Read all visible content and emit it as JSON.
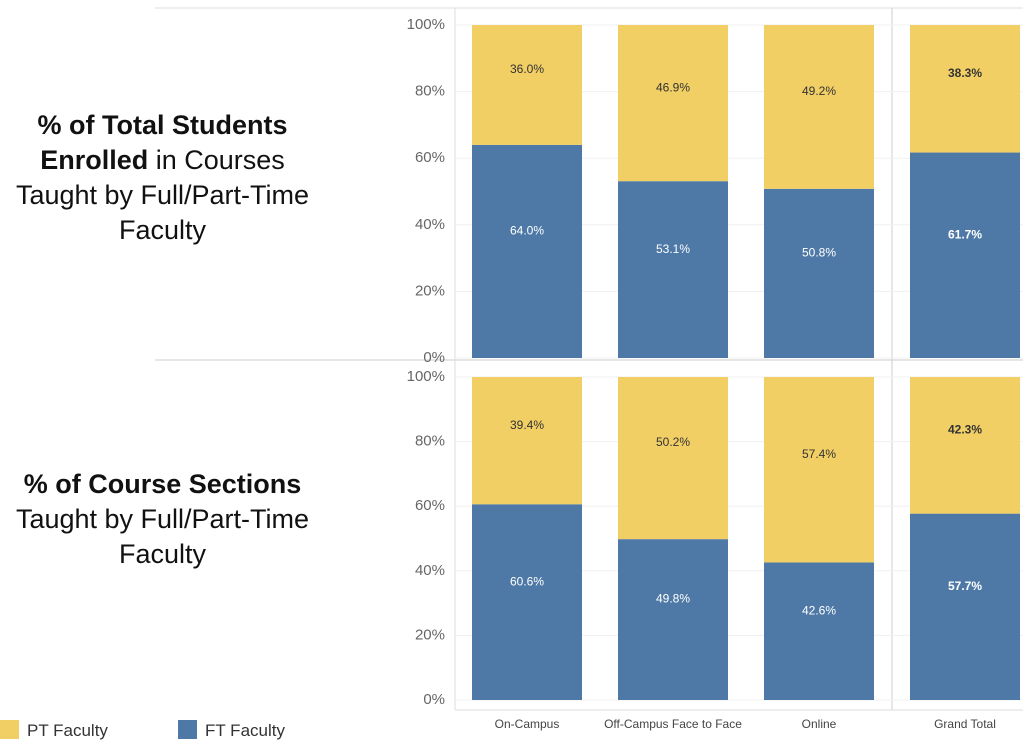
{
  "chart_data": [
    {
      "type": "stacked_bar",
      "title_bold": "% of Total Students Enrolled",
      "title": "in Courses Taught by Full/Part-Time Faculty",
      "ylim": [
        0,
        100
      ],
      "yticks": [
        {
          "value": 0,
          "label": "0%"
        },
        {
          "value": 20,
          "label": "20%"
        },
        {
          "value": 40,
          "label": "40%"
        },
        {
          "value": 60,
          "label": "60%"
        },
        {
          "value": 80,
          "label": "80%"
        },
        {
          "value": 100,
          "label": "100%"
        }
      ],
      "series": [
        {
          "name": "FT Faculty",
          "color": "#4e79a7",
          "values": [
            64.0,
            53.1,
            50.8,
            61.7
          ],
          "value_labels": [
            "64.0%",
            "53.1%",
            "50.8%",
            "61.7%"
          ]
        },
        {
          "name": "PT Faculty",
          "color": "#f1cf65",
          "values": [
            36.0,
            46.9,
            49.2,
            38.3
          ],
          "value_labels": [
            "36.0%",
            "46.9%",
            "49.2%",
            "38.3%"
          ]
        }
      ]
    },
    {
      "type": "stacked_bar",
      "title_bold": "% of Course Sections",
      "title": "Taught by Full/Part-Time Faculty",
      "categories": [
        "On-Campus",
        "Off-Campus Face to Face",
        "Online",
        "Grand Total"
      ],
      "ylim": [
        0,
        100
      ],
      "yticks": [
        {
          "value": 0,
          "label": "0%"
        },
        {
          "value": 20,
          "label": "20%"
        },
        {
          "value": 40,
          "label": "40%"
        },
        {
          "value": 60,
          "label": "60%"
        },
        {
          "value": 80,
          "label": "80%"
        },
        {
          "value": 100,
          "label": "100%"
        }
      ],
      "series": [
        {
          "name": "FT Faculty",
          "color": "#4e79a7",
          "values": [
            60.6,
            49.8,
            42.6,
            57.7
          ],
          "value_labels": [
            "60.6%",
            "49.8%",
            "42.6%",
            "57.7%"
          ]
        },
        {
          "name": "PT Faculty",
          "color": "#f1cf65",
          "values": [
            39.4,
            50.2,
            57.4,
            42.3
          ],
          "value_labels": [
            "39.4%",
            "50.2%",
            "57.4%",
            "42.3%"
          ]
        }
      ]
    }
  ]
}
